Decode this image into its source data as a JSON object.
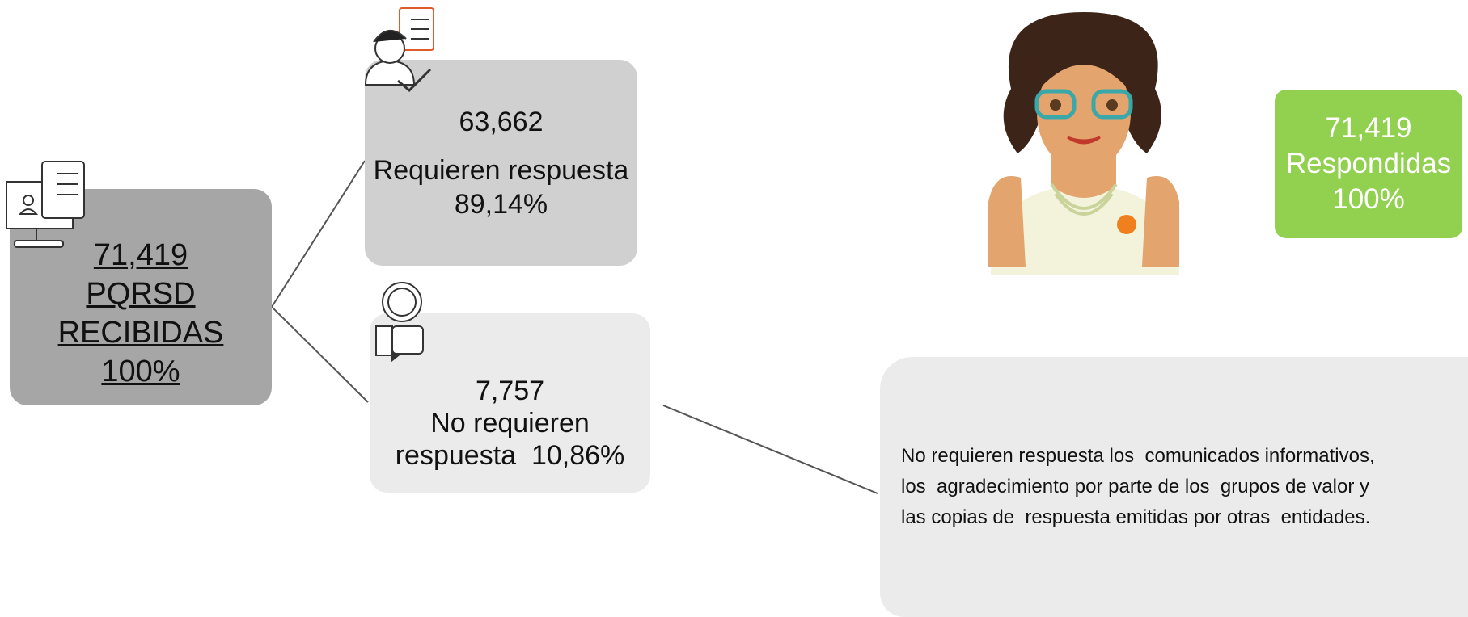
{
  "received": {
    "lines": [
      "71,419",
      "PQRSD",
      "RECIBIDAS",
      "100%"
    ]
  },
  "require": {
    "lines": [
      "63,662",
      "Requieren respuesta",
      "89,14%"
    ]
  },
  "not_require": {
    "lines": [
      "7,757",
      "No requieren",
      "respuesta  10,86%"
    ]
  },
  "answered": {
    "lines": [
      "71,419",
      "Respondidas",
      "100%"
    ]
  },
  "note": {
    "lines": [
      "No requieren respuesta los  comunicados informativos,",
      "los  agradecimiento por parte de los  grupos de valor y",
      "las copias de  respuesta emitidas por otras  entidades."
    ]
  }
}
